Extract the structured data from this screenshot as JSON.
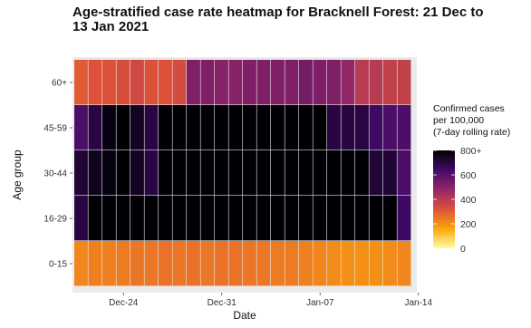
{
  "chart_data": {
    "type": "heatmap",
    "title_lines": [
      "Age-stratified case rate heatmap for Bracknell Forest: 21 Dec to",
      "13 Jan 2021"
    ],
    "xlabel": "Date",
    "ylabel": "Age group",
    "x_tick_labels": [
      "Dec-24",
      "Dec-31",
      "Jan-07",
      "Jan-14"
    ],
    "x_tick_dates": [
      "2020-12-24",
      "2020-12-31",
      "2021-01-07",
      "2021-01-14"
    ],
    "x_dates": [
      "2020-12-21",
      "2020-12-22",
      "2020-12-23",
      "2020-12-24",
      "2020-12-25",
      "2020-12-26",
      "2020-12-27",
      "2020-12-28",
      "2020-12-29",
      "2020-12-30",
      "2020-12-31",
      "2021-01-01",
      "2021-01-02",
      "2021-01-03",
      "2021-01-04",
      "2021-01-05",
      "2021-01-06",
      "2021-01-07",
      "2021-01-08",
      "2021-01-09",
      "2021-01-10",
      "2021-01-11",
      "2021-01-12",
      "2021-01-13"
    ],
    "age_groups": [
      "60+",
      "45-59",
      "30-44",
      "16-29",
      "0-15"
    ],
    "values": [
      [
        300,
        320,
        320,
        330,
        350,
        320,
        320,
        340,
        520,
        520,
        500,
        500,
        520,
        520,
        520,
        520,
        540,
        520,
        520,
        480,
        400,
        400,
        380,
        380
      ],
      [
        620,
        700,
        780,
        800,
        750,
        700,
        800,
        800,
        800,
        800,
        800,
        800,
        800,
        800,
        800,
        800,
        800,
        800,
        700,
        700,
        700,
        650,
        620,
        620
      ],
      [
        720,
        760,
        780,
        800,
        750,
        700,
        800,
        800,
        800,
        800,
        800,
        800,
        800,
        800,
        800,
        800,
        800,
        800,
        800,
        800,
        800,
        720,
        720,
        620
      ],
      [
        700,
        800,
        800,
        800,
        800,
        800,
        800,
        800,
        800,
        800,
        800,
        800,
        800,
        800,
        800,
        800,
        800,
        800,
        800,
        800,
        800,
        800,
        800,
        650
      ],
      [
        220,
        230,
        230,
        240,
        250,
        250,
        260,
        250,
        260,
        250,
        260,
        260,
        250,
        250,
        240,
        240,
        230,
        220,
        210,
        200,
        200,
        200,
        210,
        220
      ]
    ],
    "color_scale": {
      "name": "inferno",
      "min": 0,
      "max": 800,
      "tick_labels": [
        "0",
        "200",
        "400",
        "600",
        "800+"
      ],
      "stops": [
        "#fcffa4",
        "#fca50a",
        "#dd513a",
        "#932667",
        "#420a68",
        "#000004"
      ]
    },
    "legend": {
      "title_lines": [
        "Confirmed cases",
        "per 100,000",
        "(7-day rolling rate)"
      ],
      "position": "right"
    },
    "grid": true,
    "panel_background": "#ebebeb"
  }
}
